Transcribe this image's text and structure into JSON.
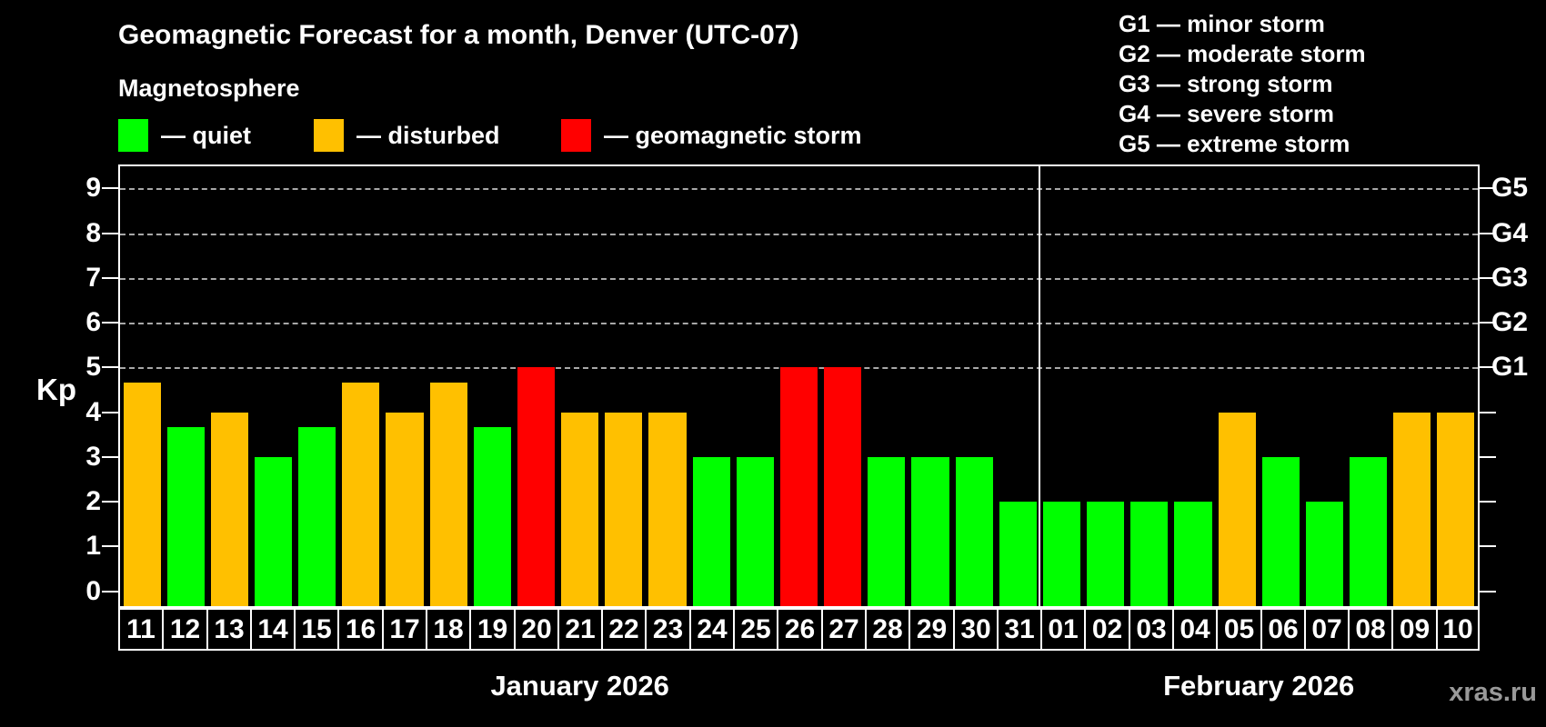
{
  "header": {
    "title": "Geomagnetic Forecast for a month, Denver (UTC-07)",
    "subtitle": "Magnetosphere"
  },
  "legend": {
    "items": [
      {
        "key": "quiet",
        "label": "— quiet",
        "color": "#00ff00"
      },
      {
        "key": "disturbed",
        "label": "— disturbed",
        "color": "#ffc000"
      },
      {
        "key": "storm",
        "label": "— geomagnetic storm",
        "color": "#ff0000"
      }
    ]
  },
  "g_scale_legend": [
    "G1 — minor storm",
    "G2 — moderate storm",
    "G3 — strong storm",
    "G4 — severe storm",
    "G5 — extreme storm"
  ],
  "watermark": "xras.ru",
  "chart_data": {
    "type": "bar",
    "title": "Geomagnetic Forecast for a month, Denver (UTC-07)",
    "ylabel": "Kp",
    "ylim": [
      0,
      9.5
    ],
    "y_ticks": [
      0,
      1,
      2,
      3,
      4,
      5,
      6,
      7,
      8,
      9
    ],
    "grid": "dashed horizontal lines at Kp 5-9 (G1-G5 storm thresholds)",
    "legend_position": "top",
    "right_axis": [
      {
        "kp": 5,
        "label": "G1"
      },
      {
        "kp": 6,
        "label": "G2"
      },
      {
        "kp": 7,
        "label": "G3"
      },
      {
        "kp": 8,
        "label": "G4"
      },
      {
        "kp": 9,
        "label": "G5"
      }
    ],
    "months": [
      {
        "label": "January 2026",
        "days": 21
      },
      {
        "label": "February 2026",
        "days": 10
      }
    ],
    "colors": {
      "quiet": "#00ff00",
      "disturbed": "#ffc000",
      "storm": "#ff0000"
    },
    "days": [
      {
        "date": "11",
        "kp": 4.67,
        "status": "disturbed"
      },
      {
        "date": "12",
        "kp": 3.67,
        "status": "quiet"
      },
      {
        "date": "13",
        "kp": 4,
        "status": "disturbed"
      },
      {
        "date": "14",
        "kp": 3,
        "status": "quiet"
      },
      {
        "date": "15",
        "kp": 3.67,
        "status": "quiet"
      },
      {
        "date": "16",
        "kp": 4.67,
        "status": "disturbed"
      },
      {
        "date": "17",
        "kp": 4,
        "status": "disturbed"
      },
      {
        "date": "18",
        "kp": 4.67,
        "status": "disturbed"
      },
      {
        "date": "19",
        "kp": 3.67,
        "status": "quiet"
      },
      {
        "date": "20",
        "kp": 5,
        "status": "storm"
      },
      {
        "date": "21",
        "kp": 4,
        "status": "disturbed"
      },
      {
        "date": "22",
        "kp": 4,
        "status": "disturbed"
      },
      {
        "date": "23",
        "kp": 4,
        "status": "disturbed"
      },
      {
        "date": "24",
        "kp": 3,
        "status": "quiet"
      },
      {
        "date": "25",
        "kp": 3,
        "status": "quiet"
      },
      {
        "date": "26",
        "kp": 5,
        "status": "storm"
      },
      {
        "date": "27",
        "kp": 5,
        "status": "storm"
      },
      {
        "date": "28",
        "kp": 3,
        "status": "quiet"
      },
      {
        "date": "29",
        "kp": 3,
        "status": "quiet"
      },
      {
        "date": "30",
        "kp": 3,
        "status": "quiet"
      },
      {
        "date": "31",
        "kp": 2,
        "status": "quiet"
      },
      {
        "date": "01",
        "kp": 2,
        "status": "quiet"
      },
      {
        "date": "02",
        "kp": 2,
        "status": "quiet"
      },
      {
        "date": "03",
        "kp": 2,
        "status": "quiet"
      },
      {
        "date": "04",
        "kp": 2,
        "status": "quiet"
      },
      {
        "date": "05",
        "kp": 4,
        "status": "disturbed"
      },
      {
        "date": "06",
        "kp": 3,
        "status": "quiet"
      },
      {
        "date": "07",
        "kp": 2,
        "status": "quiet"
      },
      {
        "date": "08",
        "kp": 3,
        "status": "quiet"
      },
      {
        "date": "09",
        "kp": 4,
        "status": "disturbed"
      },
      {
        "date": "10",
        "kp": 4,
        "status": "disturbed"
      }
    ]
  }
}
